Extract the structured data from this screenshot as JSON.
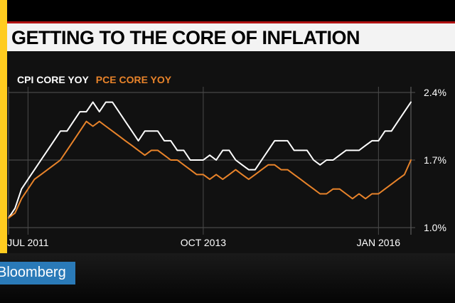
{
  "title": "GETTING TO THE CORE OF INFLATION",
  "brand": {
    "logo_text": "Bloomberg"
  },
  "colors": {
    "accent_yellow": "#ffcc1f",
    "title_border": "#b01212",
    "cpi_line": "#ffffff",
    "pce_line": "#e8832a",
    "logo_bg": "#2a7ab8"
  },
  "chart_data": {
    "type": "line",
    "title": "GETTING TO THE CORE OF INFLATION",
    "xlabel": "",
    "ylabel": "",
    "ylim": [
      1.0,
      2.4
    ],
    "y_ticks": [
      1.0,
      1.7,
      2.4
    ],
    "y_tick_labels": [
      "1.0%",
      "1.7%",
      "2.4%"
    ],
    "x_tick_labels": [
      {
        "label": "JUL 2011",
        "index": 3
      },
      {
        "label": "OCT 2013",
        "index": 30
      },
      {
        "label": "JAN 2016",
        "index": 57
      }
    ],
    "gridlines": true,
    "legend": "top-left",
    "series": [
      {
        "name": "CPI CORE YOY",
        "color": "#ffffff",
        "values": [
          1.1,
          1.2,
          1.4,
          1.5,
          1.6,
          1.7,
          1.8,
          1.9,
          2.0,
          2.0,
          2.1,
          2.2,
          2.2,
          2.3,
          2.2,
          2.3,
          2.3,
          2.2,
          2.1,
          2.0,
          1.9,
          2.0,
          2.0,
          2.0,
          1.9,
          1.9,
          1.8,
          1.8,
          1.7,
          1.7,
          1.7,
          1.75,
          1.7,
          1.8,
          1.8,
          1.7,
          1.65,
          1.6,
          1.6,
          1.7,
          1.8,
          1.9,
          1.9,
          1.9,
          1.8,
          1.8,
          1.8,
          1.7,
          1.65,
          1.7,
          1.7,
          1.75,
          1.8,
          1.8,
          1.8,
          1.85,
          1.9,
          1.9,
          2.0,
          2.0,
          2.1,
          2.2,
          2.3
        ]
      },
      {
        "name": "PCE CORE YOY",
        "color": "#e8832a",
        "values": [
          1.1,
          1.15,
          1.3,
          1.4,
          1.5,
          1.55,
          1.6,
          1.65,
          1.7,
          1.8,
          1.9,
          2.0,
          2.1,
          2.05,
          2.1,
          2.05,
          2.0,
          1.95,
          1.9,
          1.85,
          1.8,
          1.75,
          1.8,
          1.8,
          1.75,
          1.7,
          1.7,
          1.65,
          1.6,
          1.55,
          1.55,
          1.5,
          1.55,
          1.5,
          1.55,
          1.6,
          1.55,
          1.5,
          1.55,
          1.6,
          1.65,
          1.65,
          1.6,
          1.6,
          1.55,
          1.5,
          1.45,
          1.4,
          1.35,
          1.35,
          1.4,
          1.4,
          1.35,
          1.3,
          1.35,
          1.3,
          1.35,
          1.35,
          1.4,
          1.45,
          1.5,
          1.55,
          1.7
        ]
      }
    ]
  }
}
